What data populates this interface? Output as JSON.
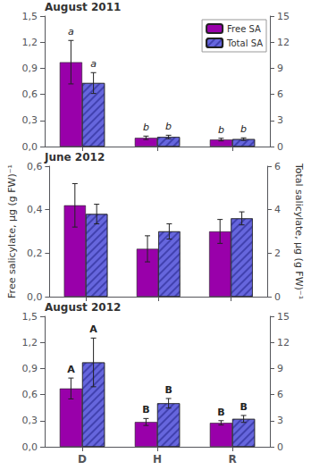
{
  "chart_data": [
    {
      "type": "bar",
      "title": "August 2011",
      "categories": [
        "D",
        "H",
        "R"
      ],
      "series": [
        {
          "name": "Free SA",
          "color": "#9900AA",
          "values": [
            0.97,
            0.1,
            0.08
          ],
          "errors": [
            0.25,
            0.02,
            0.015
          ]
        },
        {
          "name": "Total SA",
          "color": "#6666DD",
          "axis": "y2",
          "values": [
            7.3,
            1.1,
            0.85
          ],
          "errors": [
            1.2,
            0.2,
            0.15
          ]
        }
      ],
      "ylim": [
        0.0,
        1.5
      ],
      "yticks": [
        {
          "value": 0.0,
          "label": "0,0"
        },
        {
          "value": 0.3,
          "label": "0,3"
        },
        {
          "value": 0.6,
          "label": "0,6"
        },
        {
          "value": 0.9,
          "label": "0,9"
        },
        {
          "value": 1.2,
          "label": "1,2"
        },
        {
          "value": 1.5,
          "label": "1,5"
        }
      ],
      "y2lim": [
        0,
        15
      ],
      "y2ticks": [
        0,
        3,
        6,
        9,
        12,
        15
      ],
      "annotations": [
        {
          "text": "a",
          "category": "D",
          "series": "Free SA"
        },
        {
          "text": "b",
          "category": "H",
          "series": "Free SA"
        },
        {
          "text": "b",
          "category": "R",
          "series": "Free SA"
        },
        {
          "text": "a",
          "category": "D",
          "series": "Total SA"
        },
        {
          "text": "b",
          "category": "H",
          "series": "Total SA"
        },
        {
          "text": "b",
          "category": "R",
          "series": "Total SA"
        }
      ],
      "legend": "upper right",
      "grid": false,
      "tick_labels": "y"
    },
    {
      "type": "bar",
      "title": "June 2012",
      "categories": [
        "D",
        "H",
        "R"
      ],
      "series": [
        {
          "name": "Free SA",
          "color": "#9900AA",
          "values": [
            0.42,
            0.22,
            0.3
          ],
          "errors": [
            0.1,
            0.06,
            0.055
          ]
        },
        {
          "name": "Total SA",
          "color": "#6666DD",
          "axis": "y2",
          "values": [
            3.8,
            3.0,
            3.6
          ],
          "errors": [
            0.45,
            0.35,
            0.3
          ]
        }
      ],
      "ylim": [
        0.0,
        0.6
      ],
      "yticks": [
        {
          "value": 0.0,
          "label": "0,0"
        },
        {
          "value": 0.2,
          "label": "0,2"
        },
        {
          "value": 0.4,
          "label": "0,4"
        },
        {
          "value": 0.6,
          "label": "0,6"
        }
      ],
      "y2lim": [
        0,
        6
      ],
      "y2ticks": [
        0,
        2,
        4,
        6
      ],
      "ylabel": "Free salicylate, μg (g FW)⁻¹",
      "y2label": "Total salicylate, μg (g FW)⁻¹",
      "grid": false,
      "tick_labels": "y"
    },
    {
      "type": "bar",
      "title": "August 2012",
      "categories": [
        "D",
        "H",
        "R"
      ],
      "series": [
        {
          "name": "Free SA",
          "color": "#9900AA",
          "values": [
            0.67,
            0.285,
            0.275
          ],
          "errors": [
            0.12,
            0.04,
            0.025
          ]
        },
        {
          "name": "Total SA",
          "color": "#6666DD",
          "axis": "y2",
          "values": [
            9.7,
            5.0,
            3.2
          ],
          "errors": [
            2.8,
            0.55,
            0.4
          ]
        }
      ],
      "ylim": [
        0.0,
        1.5
      ],
      "yticks": [
        {
          "value": 0.0,
          "label": "0,0"
        },
        {
          "value": 0.3,
          "label": "0,3"
        },
        {
          "value": 0.6,
          "label": "0,6"
        },
        {
          "value": 0.9,
          "label": "0,9"
        },
        {
          "value": 1.2,
          "label": "1,2"
        },
        {
          "value": 1.5,
          "label": "1,5"
        }
      ],
      "y2lim": [
        0,
        15
      ],
      "y2ticks": [
        0,
        3,
        6,
        9,
        12,
        15
      ],
      "annotations": [
        {
          "text": "A",
          "category": "D",
          "series": "Free SA"
        },
        {
          "text": "B",
          "category": "H",
          "series": "Free SA"
        },
        {
          "text": "B",
          "category": "R",
          "series": "Free SA"
        },
        {
          "text": "A",
          "category": "D",
          "series": "Total SA"
        },
        {
          "text": "B",
          "category": "H",
          "series": "Total SA"
        },
        {
          "text": "B",
          "category": "R",
          "series": "Total SA"
        }
      ],
      "grid": false
    }
  ]
}
